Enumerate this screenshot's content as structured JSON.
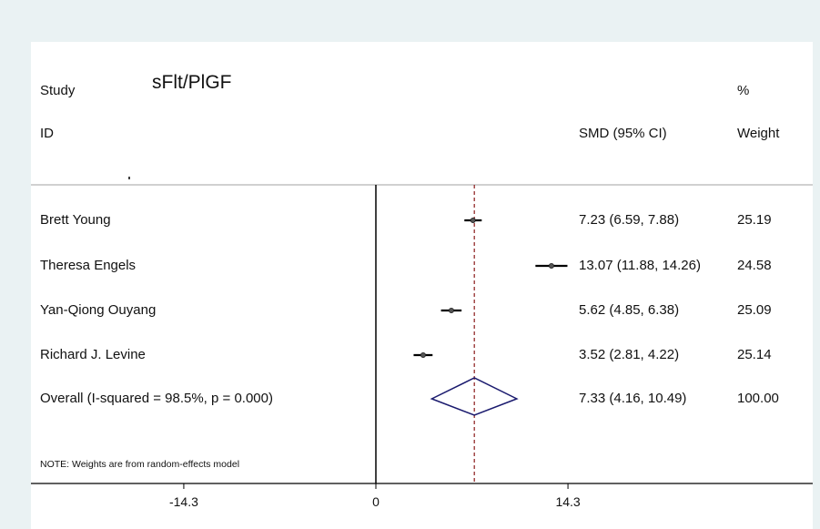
{
  "header": {
    "study": "Study",
    "id": "ID",
    "marker_title": "sFlt/PlGF",
    "smd": "SMD (95% CI)",
    "pct": "%",
    "weight": "Weight"
  },
  "note": "NOTE: Weights are from random-effects model",
  "colors": {
    "background": "#eaf2f3",
    "panel": "#ffffff",
    "ci_line": "#000000",
    "point": "#555555",
    "overall_line": "#8b1a1a",
    "diamond": "#1a1a6e"
  },
  "chart_data": {
    "type": "forest",
    "measure": "SMD",
    "xlim": [
      -20,
      34
    ],
    "xticks": [
      -14.3,
      0,
      14.3
    ],
    "xtick_labels": [
      "-14.3",
      "0",
      "14.3"
    ],
    "null_line": 0,
    "overall_line": 7.33,
    "studies": [
      {
        "name": "Brett Young",
        "smd": 7.23,
        "lo": 6.59,
        "hi": 7.88,
        "weight": 25.19,
        "ci_text": "7.23 (6.59, 7.88)",
        "weight_text": "25.19"
      },
      {
        "name": "Theresa Engels",
        "smd": 13.07,
        "lo": 11.88,
        "hi": 14.26,
        "weight": 24.58,
        "ci_text": "13.07 (11.88, 14.26)",
        "weight_text": "24.58"
      },
      {
        "name": "Yan-Qiong Ouyang",
        "smd": 5.62,
        "lo": 4.85,
        "hi": 6.38,
        "weight": 25.09,
        "ci_text": "5.62 (4.85, 6.38)",
        "weight_text": "25.09"
      },
      {
        "name": "Richard J. Levine",
        "smd": 3.52,
        "lo": 2.81,
        "hi": 4.22,
        "weight": 25.14,
        "ci_text": "3.52 (2.81, 4.22)",
        "weight_text": "25.14"
      }
    ],
    "overall": {
      "label": "Overall (I-squared = 98.5%, p = 0.000)",
      "smd": 7.33,
      "lo": 4.16,
      "hi": 10.49,
      "weight": 100,
      "ci_text": "7.33 (4.16, 10.49)",
      "weight_text": "100.00"
    }
  }
}
